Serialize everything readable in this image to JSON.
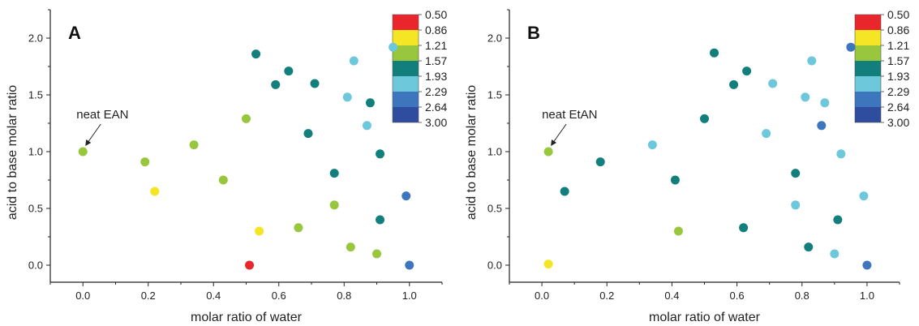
{
  "chart_data": [
    {
      "type": "scatter",
      "panel": "A",
      "xlabel": "molar ratio of water",
      "ylabel": "acid to base molar ratio",
      "xlim": [
        -0.1,
        1.1
      ],
      "ylim": [
        -0.15,
        2.25
      ],
      "xticks": [
        "0.0",
        "0.2",
        "0.4",
        "0.6",
        "0.8",
        "1.0"
      ],
      "yticks": [
        "0.0",
        "0.5",
        "1.0",
        "1.5",
        "2.0"
      ],
      "annotation": {
        "text": "neat EAN",
        "target": [
          0.0,
          1.0
        ]
      },
      "colorbar": {
        "labels": [
          "0.50",
          "0.86",
          "1.21",
          "1.57",
          "1.93",
          "2.29",
          "2.64",
          "3.00"
        ],
        "colors": [
          "#e8262b",
          "#f5e625",
          "#98c73e",
          "#127f7c",
          "#6cc8da",
          "#3e76bd",
          "#2f4d9f"
        ]
      },
      "points": [
        {
          "x": 0.0,
          "y": 1.0,
          "color": "#98c73e"
        },
        {
          "x": 0.19,
          "y": 0.91,
          "color": "#98c73e"
        },
        {
          "x": 0.22,
          "y": 0.65,
          "color": "#f5e625"
        },
        {
          "x": 0.34,
          "y": 1.06,
          "color": "#98c73e"
        },
        {
          "x": 0.43,
          "y": 0.75,
          "color": "#98c73e"
        },
        {
          "x": 0.5,
          "y": 1.29,
          "color": "#98c73e"
        },
        {
          "x": 0.51,
          "y": 0.0,
          "color": "#e8262b"
        },
        {
          "x": 0.53,
          "y": 1.86,
          "color": "#127f7c"
        },
        {
          "x": 0.54,
          "y": 0.3,
          "color": "#f5e625"
        },
        {
          "x": 0.59,
          "y": 1.59,
          "color": "#127f7c"
        },
        {
          "x": 0.63,
          "y": 1.71,
          "color": "#127f7c"
        },
        {
          "x": 0.66,
          "y": 0.33,
          "color": "#98c73e"
        },
        {
          "x": 0.69,
          "y": 1.16,
          "color": "#127f7c"
        },
        {
          "x": 0.71,
          "y": 1.6,
          "color": "#127f7c"
        },
        {
          "x": 0.77,
          "y": 0.81,
          "color": "#127f7c"
        },
        {
          "x": 0.77,
          "y": 0.53,
          "color": "#98c73e"
        },
        {
          "x": 0.81,
          "y": 1.48,
          "color": "#6cc8da"
        },
        {
          "x": 0.82,
          "y": 0.16,
          "color": "#98c73e"
        },
        {
          "x": 0.83,
          "y": 1.8,
          "color": "#6cc8da"
        },
        {
          "x": 0.87,
          "y": 1.23,
          "color": "#6cc8da"
        },
        {
          "x": 0.88,
          "y": 1.43,
          "color": "#127f7c"
        },
        {
          "x": 0.9,
          "y": 0.1,
          "color": "#98c73e"
        },
        {
          "x": 0.91,
          "y": 0.4,
          "color": "#127f7c"
        },
        {
          "x": 0.91,
          "y": 0.98,
          "color": "#127f7c"
        },
        {
          "x": 0.95,
          "y": 1.92,
          "color": "#6cc8da"
        },
        {
          "x": 0.99,
          "y": 0.61,
          "color": "#3e76bd"
        },
        {
          "x": 1.0,
          "y": 0.0,
          "color": "#3e76bd"
        }
      ]
    },
    {
      "type": "scatter",
      "panel": "B",
      "xlabel": "molar ratio of water",
      "ylabel": "acid to base molar ratio",
      "xlim": [
        -0.1,
        1.1
      ],
      "ylim": [
        -0.15,
        2.25
      ],
      "xticks": [
        "0.0",
        "0.2",
        "0.4",
        "0.6",
        "0.8",
        "1.0"
      ],
      "yticks": [
        "0.0",
        "0.5",
        "1.0",
        "1.5",
        "2.0"
      ],
      "annotation": {
        "text": "neat EtAN",
        "target": [
          0.02,
          1.0
        ]
      },
      "colorbar": {
        "labels": [
          "0.50",
          "0.86",
          "1.21",
          "1.57",
          "1.93",
          "2.29",
          "2.64",
          "3.00"
        ],
        "colors": [
          "#e8262b",
          "#f5e625",
          "#98c73e",
          "#127f7c",
          "#6cc8da",
          "#3e76bd",
          "#2f4d9f"
        ]
      },
      "points": [
        {
          "x": 0.02,
          "y": 1.0,
          "color": "#98c73e"
        },
        {
          "x": 0.02,
          "y": 0.01,
          "color": "#f5e625"
        },
        {
          "x": 0.07,
          "y": 0.65,
          "color": "#127f7c"
        },
        {
          "x": 0.18,
          "y": 0.91,
          "color": "#127f7c"
        },
        {
          "x": 0.34,
          "y": 1.06,
          "color": "#6cc8da"
        },
        {
          "x": 0.41,
          "y": 0.75,
          "color": "#127f7c"
        },
        {
          "x": 0.42,
          "y": 0.3,
          "color": "#98c73e"
        },
        {
          "x": 0.5,
          "y": 1.29,
          "color": "#127f7c"
        },
        {
          "x": 0.53,
          "y": 1.87,
          "color": "#127f7c"
        },
        {
          "x": 0.59,
          "y": 1.59,
          "color": "#127f7c"
        },
        {
          "x": 0.62,
          "y": 0.33,
          "color": "#127f7c"
        },
        {
          "x": 0.63,
          "y": 1.71,
          "color": "#127f7c"
        },
        {
          "x": 0.69,
          "y": 1.16,
          "color": "#6cc8da"
        },
        {
          "x": 0.71,
          "y": 1.6,
          "color": "#6cc8da"
        },
        {
          "x": 0.78,
          "y": 0.53,
          "color": "#6cc8da"
        },
        {
          "x": 0.78,
          "y": 0.81,
          "color": "#127f7c"
        },
        {
          "x": 0.81,
          "y": 1.48,
          "color": "#6cc8da"
        },
        {
          "x": 0.82,
          "y": 0.16,
          "color": "#127f7c"
        },
        {
          "x": 0.83,
          "y": 1.8,
          "color": "#6cc8da"
        },
        {
          "x": 0.86,
          "y": 1.23,
          "color": "#3e76bd"
        },
        {
          "x": 0.87,
          "y": 1.43,
          "color": "#6cc8da"
        },
        {
          "x": 0.9,
          "y": 0.1,
          "color": "#6cc8da"
        },
        {
          "x": 0.91,
          "y": 0.4,
          "color": "#127f7c"
        },
        {
          "x": 0.92,
          "y": 0.98,
          "color": "#6cc8da"
        },
        {
          "x": 0.95,
          "y": 1.92,
          "color": "#3e76bd"
        },
        {
          "x": 0.99,
          "y": 0.61,
          "color": "#6cc8da"
        },
        {
          "x": 1.0,
          "y": 0.0,
          "color": "#3e76bd"
        }
      ]
    }
  ]
}
